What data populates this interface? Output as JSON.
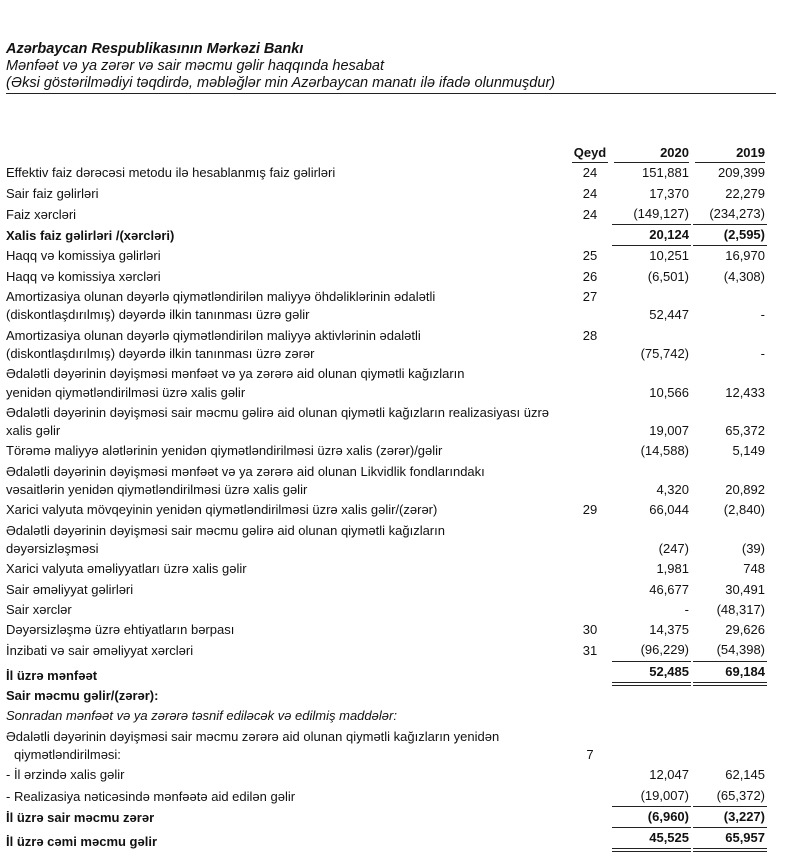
{
  "header": {
    "entity": "Azərbaycan Respublikasının Mərkəzi Bankı",
    "statement": "Mənfəət və ya zərər və sair məcmu gəlir haqqında hesabat",
    "basis": "(Əksi göstərilmədiyi təqdirdə, məbləğlər min Azərbaycan manatı ilə ifadə olunmuşdur)"
  },
  "columns": {
    "note": "Qeyd",
    "y2020": "2020",
    "y2019": "2019"
  },
  "rows": [
    {
      "label": [
        "Effektiv faiz dərəcəsi metodu ilə hesablanmış faiz gəlirləri"
      ],
      "note": "24",
      "y2020": "151,881",
      "y2019": "209,399"
    },
    {
      "label": [
        "Sair faiz gəlirləri"
      ],
      "note": "24",
      "y2020": "17,370",
      "y2019": "22,279"
    },
    {
      "label": [
        "Faiz xərcləri"
      ],
      "note": "24",
      "y2020": "(149,127)",
      "y2019": "(234,273)"
    },
    {
      "label": [
        "Xalis faiz gəlirləri /(xərcləri)"
      ],
      "note": "",
      "y2020": "20,124",
      "y2019": "(2,595)",
      "style": "bold"
    },
    {
      "label": [
        "Haqq və komissiya gəlirləri"
      ],
      "note": "25",
      "y2020": "10,251",
      "y2019": "16,970"
    },
    {
      "label": [
        "Haqq və komissiya xərcləri"
      ],
      "note": "26",
      "y2020": "(6,501)",
      "y2019": "(4,308)"
    },
    {
      "label": [
        "Amortizasiya olunan dəyərlə qiymətləndirilən maliyyə öhdəliklərinin ədalətli",
        "(diskontlaşdırılmış) dəyərdə ilkin tanınması üzrə gəlir"
      ],
      "note": "27",
      "y2020": "52,447",
      "y2019": "-"
    },
    {
      "label": [
        "Amortizasiya olunan dəyərlə qiymətləndirilən maliyyə aktivlərinin ədalətli",
        "(diskontlaşdırılmış) dəyərdə  ilkin tanınması üzrə zərər"
      ],
      "note": "28",
      "y2020": "(75,742)",
      "y2019": "-"
    },
    {
      "label": [
        "Ədalətli dəyərinin dəyişməsi mənfəət və ya zərərə aid olunan qiymətli kağızların",
        "yenidən qiymətləndirilməsi üzrə xalis gəlir"
      ],
      "note": "",
      "y2020": "10,566",
      "y2019": "12,433"
    },
    {
      "label": [
        "Ədalətli dəyərinin dəyişməsi sair məcmu gəlirə aid olunan qiymətli kağızların realizasiyası üzrə",
        "xalis gəlir"
      ],
      "note": "",
      "y2020": "19,007",
      "y2019": "65,372"
    },
    {
      "label": [
        "Törəmə maliyyə alətlərinin yenidən qiymətləndirilməsi üzrə xalis (zərər)/gəlir"
      ],
      "note": "",
      "y2020": "(14,588)",
      "y2019": "5,149"
    },
    {
      "label": [
        "Ədalətli dəyərinin dəyişməsi mənfəət və ya zərərə aid olunan Likvidlik fondlarındakı",
        "vəsaitlərin yenidən qiymətləndirilməsi  üzrə xalis gəlir"
      ],
      "note": "",
      "y2020": "4,320",
      "y2019": "20,892"
    },
    {
      "label": [
        "Xarici valyuta mövqeyinin yenidən qiymətləndirilməsi üzrə xalis gəlir/(zərər)"
      ],
      "note": "29",
      "y2020": "66,044",
      "y2019": "(2,840)"
    },
    {
      "label": [
        "Ədalətli dəyərinin dəyişməsi sair məcmu gəlirə aid olunan qiymətli kağızların",
        "dəyərsizləşməsi"
      ],
      "note": "",
      "y2020": "(247)",
      "y2019": "(39)"
    },
    {
      "label": [
        "Xarici valyuta əməliyyatları üzrə xalis gəlir"
      ],
      "note": "",
      "y2020": "1,981",
      "y2019": "748"
    },
    {
      "label": [
        "Sair əməliyyat gəlirləri"
      ],
      "note": "",
      "y2020": "46,677",
      "y2019": "30,491"
    },
    {
      "label": [
        "Sair xərclər"
      ],
      "note": "",
      "y2020": "-",
      "y2019": "(48,317)"
    },
    {
      "label": [
        "Dəyərsizləşmə üzrə ehtiyatların bərpası"
      ],
      "note": "30",
      "y2020": "14,375",
      "y2019": "29,626"
    },
    {
      "label": [
        "İnzibati və sair əməliyyat xərcləri"
      ],
      "note": "31",
      "y2020": "(96,229)",
      "y2019": "(54,398)"
    },
    {
      "label": [
        "İl üzrə mənfəət"
      ],
      "note": "",
      "y2020": "52,485",
      "y2019": "69,184",
      "style": "bold"
    },
    {
      "label": [
        "Sair məcmu gəlir/(zərər):"
      ],
      "note": "",
      "y2020": "",
      "y2019": "",
      "style": "bold"
    },
    {
      "label": [
        "Sonradan mənfəət və ya zərərə təsnif ediləcək və edilmiş maddələr:"
      ],
      "note": "",
      "y2020": "",
      "y2019": "",
      "style": "italic"
    },
    {
      "label": [
        "Ədalətli dəyərinin dəyişməsi sair məcmu zərərə aid olunan qiymətli kağızların yenidən",
        "qiymətləndirilməsi:"
      ],
      "note": "7",
      "y2020": "",
      "y2019": ""
    },
    {
      "label": [
        "-  İl ərzində xalis gəlir"
      ],
      "note": "",
      "y2020": "12,047",
      "y2019": "62,145"
    },
    {
      "label": [
        "-  Realizasiya nəticəsində mənfəətə aid edilən gəlir"
      ],
      "note": "",
      "y2020": "(19,007)",
      "y2019": "(65,372)"
    },
    {
      "label": [
        "İl üzrə sair məcmu zərər"
      ],
      "note": "",
      "y2020": "(6,960)",
      "y2019": "(3,227)",
      "style": "bold"
    },
    {
      "label": [
        "İl üzrə cəmi məcmu gəlir"
      ],
      "note": "",
      "y2020": "45,525",
      "y2019": "65,957",
      "style": "bold"
    }
  ]
}
